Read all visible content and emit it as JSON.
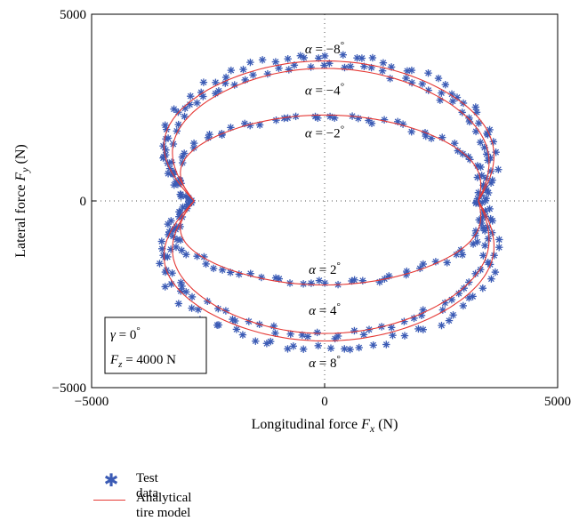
{
  "chart_data": {
    "type": "scatter",
    "xlabel": "Longitudinal force F_x (N)",
    "ylabel": "Lateral force F_y (N)",
    "xlim": [
      -5000,
      5000
    ],
    "ylim": [
      -5000,
      5000
    ],
    "xticks": [
      "-5000",
      "0",
      "5000"
    ],
    "yticks": [
      "5000",
      "0",
      "-5000"
    ],
    "grid": "dotted at 0",
    "legend_placement": "bottom-left (below plot)",
    "colors": {
      "test_data": "#3b5bb5",
      "model": "#e53935"
    },
    "annotations": [
      {
        "text": "α = −8°",
        "x": 0,
        "y": 3950
      },
      {
        "text": "α = −4°",
        "x": 0,
        "y": 2850
      },
      {
        "text": "α = −2°",
        "x": 0,
        "y": 1700
      },
      {
        "text": "α = 2°",
        "x": 0,
        "y": -1950
      },
      {
        "text": "α = 4°",
        "x": 0,
        "y": -3050
      },
      {
        "text": "α = 8°",
        "x": 0,
        "y": -4450
      }
    ],
    "info_box": {
      "line1": "γ = 0°",
      "line2": "F_z = 4000 N"
    },
    "series": [
      {
        "name": "Test data",
        "marker": "asterisk",
        "curves": [
          {
            "alpha": -8,
            "peak_fy": 3900,
            "fx_right": 4100,
            "fx_left": -4100,
            "fy_at_fx0": 3900
          },
          {
            "alpha": -4,
            "peak_fy": 3600,
            "fx_right": 3900,
            "fx_left": -3900,
            "fy_at_fx0": 3600
          },
          {
            "alpha": -2,
            "peak_fy": 2250,
            "fx_right": 3600,
            "fx_left": -3700,
            "fy_at_fx0": 2250
          },
          {
            "alpha": 2,
            "peak_fy": -2200,
            "fx_right": 3600,
            "fx_left": -3700,
            "fy_at_fx0": -2200
          },
          {
            "alpha": 4,
            "peak_fy": -3600,
            "fx_right": 3900,
            "fx_left": -3900,
            "fy_at_fx0": -3600
          },
          {
            "alpha": 8,
            "peak_fy": -3950,
            "fx_right": 4200,
            "fx_left": -4200,
            "fy_at_fx0": -3950
          }
        ]
      },
      {
        "name": "Analytical tire model",
        "marker": "line",
        "curves": [
          {
            "alpha": -8,
            "peak_fy": 3750,
            "fx_right": 4100,
            "fx_left": -4100
          },
          {
            "alpha": -4,
            "peak_fy": 3550,
            "fx_right": 3900,
            "fx_left": -3800
          },
          {
            "alpha": -2,
            "peak_fy": 2300,
            "fx_right": 3500,
            "fx_left": -3500
          },
          {
            "alpha": 2,
            "peak_fy": -2250,
            "fx_right": 3500,
            "fx_left": -3500
          },
          {
            "alpha": 4,
            "peak_fy": -3550,
            "fx_right": 3900,
            "fx_left": -3800
          },
          {
            "alpha": 8,
            "peak_fy": -3750,
            "fx_right": 4100,
            "fx_left": -4100
          }
        ]
      }
    ]
  },
  "legend": {
    "test_data_label": "Test data",
    "model_label": "Analytical tire model"
  }
}
